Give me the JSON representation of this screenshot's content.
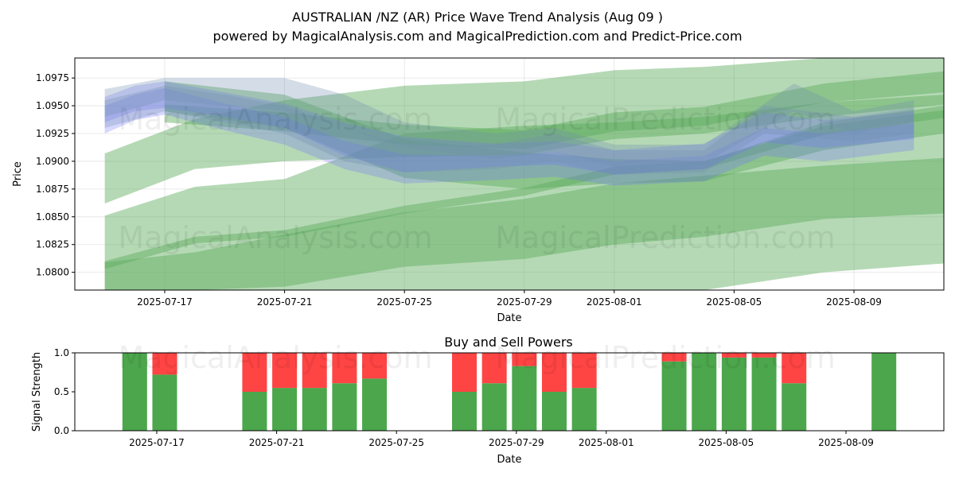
{
  "title": "AUSTRALIAN /NZ (AR) Price Wave Trend Analysis (Aug 09 )",
  "subtitle": "powered by MagicalAnalysis.com and MagicalPrediction.com and Predict-Price.com",
  "watermarks": [
    "MagicalAnalysis.com",
    "MagicalPrediction.com"
  ],
  "colors": {
    "buy": "#4ca64c",
    "sell": "#ff4444",
    "wave_green": "#5aaa5a",
    "wave_blue": "#6f6fff",
    "wave_steel": "#6f8fb0"
  },
  "chart_data": [
    {
      "type": "area",
      "xlabel": "Date",
      "ylabel": "Price",
      "x_range": [
        "2025-07-14",
        "2025-08-12"
      ],
      "ylim": [
        1.0784,
        1.0993
      ],
      "y_ticks": [
        1.08,
        1.0825,
        1.085,
        1.0875,
        1.09,
        1.0925,
        1.095,
        1.0975
      ],
      "x_ticks": [
        "2025-07-17",
        "2025-07-21",
        "2025-07-25",
        "2025-07-29",
        "2025-08-01",
        "2025-08-05",
        "2025-08-09"
      ],
      "grid": true,
      "series": [
        {
          "color": "green",
          "dates": [
            "2025-07-15",
            "2025-07-18",
            "2025-07-21",
            "2025-07-25",
            "2025-07-29",
            "2025-08-01",
            "2025-08-04",
            "2025-08-08",
            "2025-08-12"
          ],
          "upper": [
            1.0907,
            1.0938,
            1.0955,
            1.0968,
            1.0972,
            1.0982,
            1.0985,
            1.0997,
            1.0997
          ],
          "lower": [
            1.0862,
            1.0893,
            1.09,
            1.0904,
            1.0906,
            1.092,
            1.0925,
            1.094,
            1.0951
          ]
        },
        {
          "color": "green",
          "dates": [
            "2025-07-15",
            "2025-07-18",
            "2025-07-21",
            "2025-07-25",
            "2025-07-29",
            "2025-08-01",
            "2025-08-04",
            "2025-08-08",
            "2025-08-12"
          ],
          "upper": [
            1.0851,
            1.0877,
            1.0884,
            1.0925,
            1.0932,
            1.0935,
            1.094,
            1.0953,
            1.096
          ],
          "lower": [
            1.0784,
            1.0784,
            1.0787,
            1.0805,
            1.0812,
            1.0825,
            1.0832,
            1.0848,
            1.0853
          ]
        },
        {
          "color": "green",
          "dates": [
            "2025-07-15",
            "2025-07-18",
            "2025-07-21",
            "2025-07-25",
            "2025-07-29",
            "2025-08-01",
            "2025-08-04",
            "2025-08-08",
            "2025-08-12"
          ],
          "upper": [
            1.0809,
            1.0818,
            1.0834,
            1.0854,
            1.0866,
            1.088,
            1.0887,
            1.0896,
            1.0903
          ],
          "lower": [
            1.0784,
            1.0784,
            1.0784,
            1.0784,
            1.0784,
            1.0784,
            1.0784,
            1.08,
            1.0808
          ]
        },
        {
          "color": "green",
          "dates": [
            "2025-07-15",
            "2025-07-18",
            "2025-07-21",
            "2025-07-25",
            "2025-07-29",
            "2025-08-01",
            "2025-08-04",
            "2025-08-08",
            "2025-08-12"
          ],
          "upper": [
            1.081,
            1.0832,
            1.0838,
            1.086,
            1.0876,
            1.0895,
            1.09,
            1.0932,
            1.0946
          ],
          "lower": [
            1.0803,
            1.0826,
            1.0832,
            1.0853,
            1.0869,
            1.0888,
            1.0893,
            1.0924,
            1.0939
          ]
        },
        {
          "color": "green",
          "dates": [
            "2025-07-17",
            "2025-07-21",
            "2025-07-25",
            "2025-07-29",
            "2025-08-01",
            "2025-08-04",
            "2025-08-08",
            "2025-08-12"
          ],
          "upper": [
            1.0951,
            1.0944,
            1.0933,
            1.0928,
            1.0944,
            1.0949,
            1.097,
            1.0981
          ],
          "lower": [
            1.0935,
            1.0927,
            1.0915,
            1.0911,
            1.0927,
            1.0932,
            1.0953,
            1.0962
          ]
        },
        {
          "color": "green",
          "dates": [
            "2025-07-17",
            "2025-07-21",
            "2025-07-25",
            "2025-07-29",
            "2025-08-01",
            "2025-08-04",
            "2025-08-08",
            "2025-08-12"
          ],
          "upper": [
            1.0972,
            1.096,
            1.092,
            1.0908,
            1.0902,
            1.09,
            1.0935,
            1.095
          ],
          "lower": [
            1.0945,
            1.093,
            1.0885,
            1.0875,
            1.088,
            1.0882,
            1.091,
            1.0925
          ]
        },
        {
          "color": "blue",
          "dates": [
            "2025-07-15",
            "2025-07-16",
            "2025-07-17",
            "2025-07-19",
            "2025-07-21",
            "2025-07-23",
            "2025-07-25",
            "2025-07-28",
            "2025-07-30",
            "2025-08-01",
            "2025-08-04",
            "2025-08-06",
            "2025-08-08",
            "2025-08-11"
          ],
          "upper": [
            1.0958,
            1.0968,
            1.0972,
            1.0962,
            1.0952,
            1.0935,
            1.0922,
            1.0916,
            1.0918,
            1.091,
            1.0916,
            1.0944,
            1.0937,
            1.0945
          ],
          "lower": [
            1.0935,
            1.0945,
            1.0948,
            1.094,
            1.093,
            1.0905,
            1.089,
            1.0895,
            1.0897,
            1.0888,
            1.0893,
            1.0917,
            1.0912,
            1.092
          ]
        },
        {
          "color": "blue",
          "dates": [
            "2025-07-15",
            "2025-07-16",
            "2025-07-17",
            "2025-07-19",
            "2025-07-21",
            "2025-07-23",
            "2025-07-25",
            "2025-07-28",
            "2025-07-30",
            "2025-08-01",
            "2025-08-04",
            "2025-08-06",
            "2025-08-08",
            "2025-08-11"
          ],
          "upper": [
            1.095,
            1.096,
            1.0966,
            1.0952,
            1.094,
            1.0918,
            1.0906,
            1.0905,
            1.0908,
            1.09,
            1.0905,
            1.093,
            1.0925,
            1.0934
          ],
          "lower": [
            1.0925,
            1.0937,
            1.0942,
            1.0928,
            1.0915,
            1.0893,
            1.088,
            1.0883,
            1.0886,
            1.0878,
            1.0882,
            1.0905,
            1.09,
            1.091
          ]
        },
        {
          "color": "steel",
          "dates": [
            "2025-07-15",
            "2025-07-17",
            "2025-07-19",
            "2025-07-21",
            "2025-07-23",
            "2025-07-25",
            "2025-07-28",
            "2025-07-30",
            "2025-08-01",
            "2025-08-04",
            "2025-08-07",
            "2025-08-09",
            "2025-08-11"
          ],
          "upper": [
            1.0965,
            1.0975,
            1.0975,
            1.0975,
            1.096,
            1.0935,
            1.0925,
            1.093,
            1.0915,
            1.0915,
            1.097,
            1.0945,
            1.0955
          ],
          "lower": [
            1.094,
            1.0955,
            1.095,
            1.0945,
            1.093,
            1.0912,
            1.0902,
            1.0908,
            1.0895,
            1.0898,
            1.0945,
            1.0925,
            1.0935
          ]
        },
        {
          "color": "steel",
          "dates": [
            "2025-07-15",
            "2025-07-17",
            "2025-07-19",
            "2025-07-21",
            "2025-07-23",
            "2025-07-25",
            "2025-07-28",
            "2025-07-30",
            "2025-08-01",
            "2025-08-04",
            "2025-08-06",
            "2025-08-09",
            "2025-08-11"
          ],
          "upper": [
            1.0955,
            1.0968,
            1.096,
            1.095,
            1.093,
            1.0915,
            1.0915,
            1.0925,
            1.091,
            1.091,
            1.095,
            1.094,
            1.0948
          ],
          "lower": [
            1.093,
            1.0945,
            1.0935,
            1.0925,
            1.09,
            1.089,
            1.0893,
            1.09,
            1.0888,
            1.089,
            1.0925,
            1.0918,
            1.0925
          ]
        }
      ]
    },
    {
      "type": "bar",
      "title": "Buy and Sell Powers",
      "xlabel": "Date",
      "ylabel": "Signal Strength",
      "ylim": [
        0,
        1
      ],
      "y_ticks": [
        "0.0",
        "0.5",
        "1.0"
      ],
      "x_ticks": [
        "2025-07-17",
        "2025-07-21",
        "2025-07-25",
        "2025-07-29",
        "2025-08-01",
        "2025-08-05",
        "2025-08-09"
      ],
      "categories": [
        "2025-07-16",
        "2025-07-17",
        "2025-07-20",
        "2025-07-21",
        "2025-07-22",
        "2025-07-23",
        "2025-07-24",
        "2025-07-27",
        "2025-07-28",
        "2025-07-29",
        "2025-07-30",
        "2025-07-31",
        "2025-08-03",
        "2025-08-04",
        "2025-08-05",
        "2025-08-06",
        "2025-08-07",
        "2025-08-10"
      ],
      "series": [
        {
          "name": "buy",
          "values": [
            1.0,
            0.72,
            0.5,
            0.55,
            0.55,
            0.61,
            0.67,
            0.5,
            0.61,
            0.83,
            0.5,
            0.55,
            0.89,
            1.0,
            0.94,
            0.94,
            0.61,
            1.0
          ]
        },
        {
          "name": "sell",
          "values": [
            0.0,
            0.28,
            0.5,
            0.45,
            0.45,
            0.39,
            0.33,
            0.5,
            0.39,
            0.17,
            0.5,
            0.45,
            0.11,
            0.0,
            0.06,
            0.06,
            0.39,
            0.0
          ]
        }
      ]
    }
  ]
}
